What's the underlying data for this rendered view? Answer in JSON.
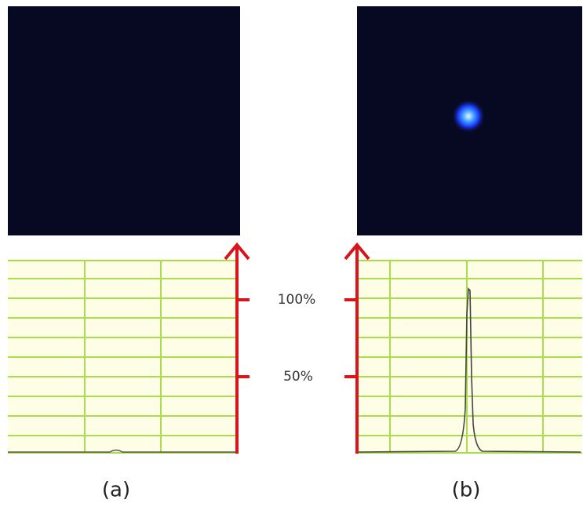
{
  "figure": {
    "panels": [
      {
        "label": "(a)"
      },
      {
        "label": "(b)"
      }
    ],
    "axis_labels": [
      "100%",
      "50%"
    ]
  }
}
